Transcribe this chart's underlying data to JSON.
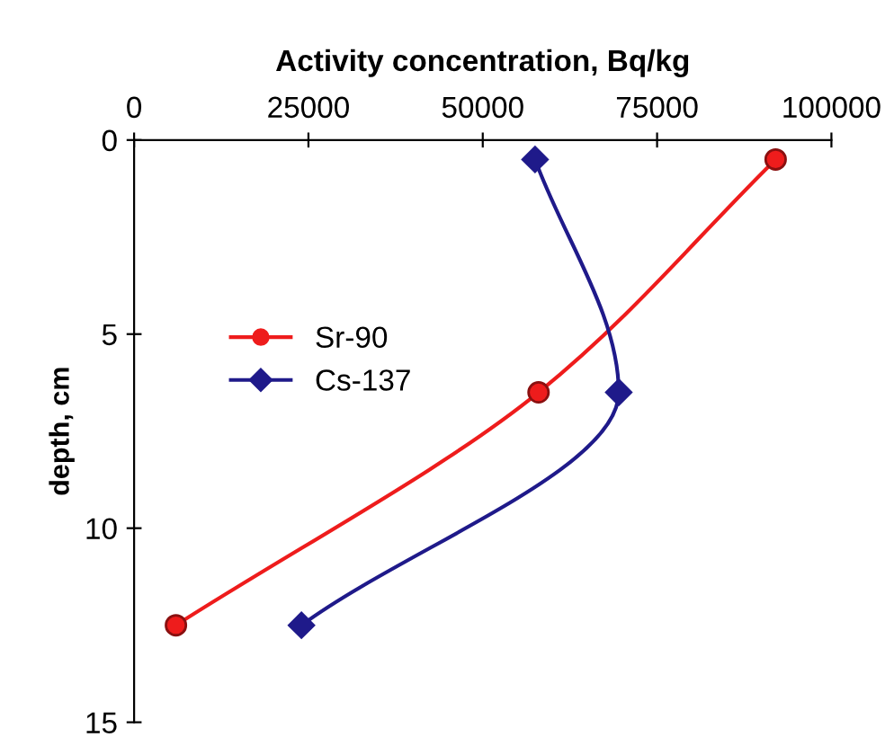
{
  "chart_data": {
    "type": "line",
    "xlabel": "Activity concentration, Bq/kg",
    "ylabel": "depth, cm",
    "xlim": [
      0,
      100000
    ],
    "xticks": [
      0,
      25000,
      50000,
      75000,
      100000
    ],
    "ylim": [
      15,
      0
    ],
    "yticks": [
      0,
      5,
      10,
      15
    ],
    "grid": false,
    "legend": "left",
    "series": [
      {
        "name": "Sr-90",
        "color": "#ee1c1c",
        "marker": "circle",
        "x": [
          92000,
          58000,
          6000
        ],
        "values": [
          0.5,
          6.5,
          12.5
        ]
      },
      {
        "name": "Cs-137",
        "color": "#1f1a8a",
        "marker": "diamond",
        "x": [
          57500,
          69500,
          24000
        ],
        "values": [
          0.5,
          6.5,
          12.5
        ]
      }
    ]
  }
}
